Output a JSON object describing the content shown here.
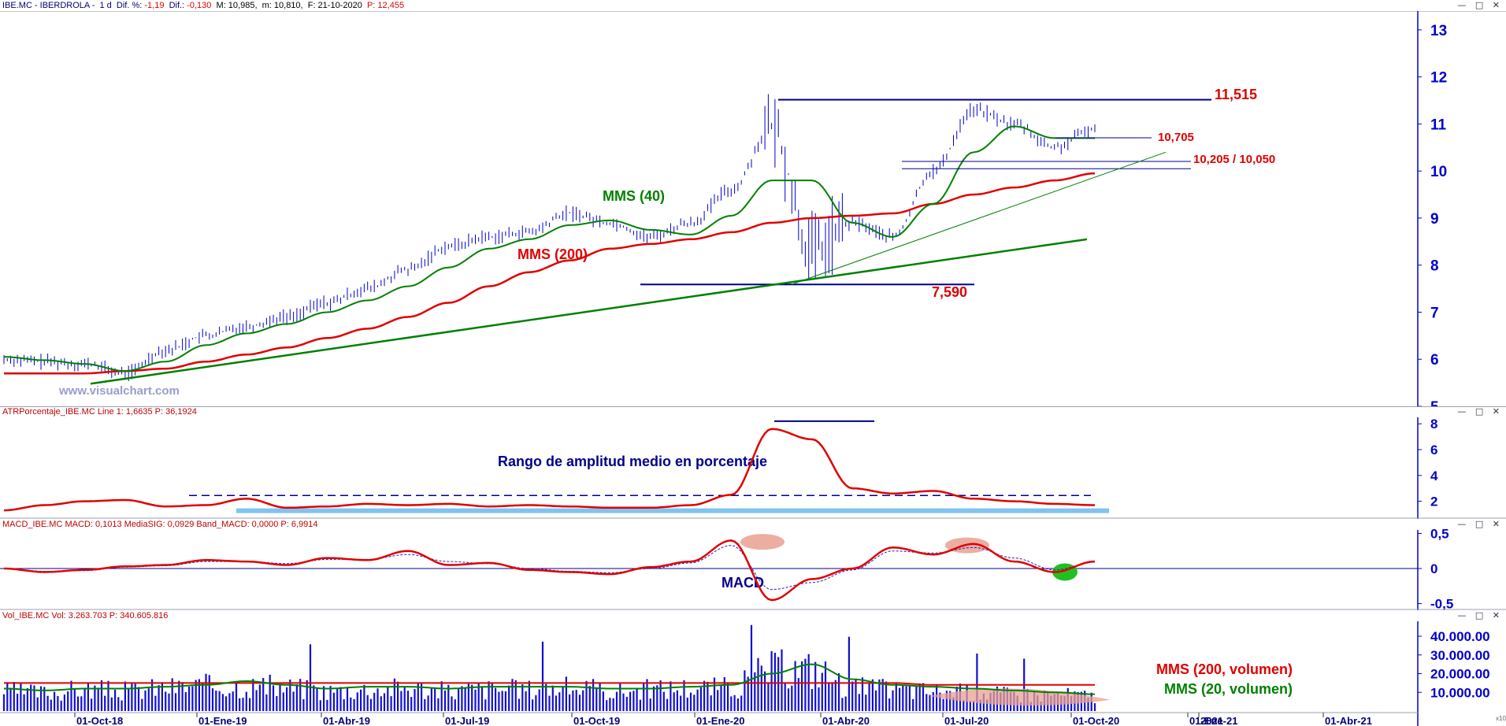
{
  "price_panel": {
    "header": {
      "symbol": "IBE.MC - IBERDROLA -",
      "interval": "1 d",
      "dif_pct_label": "Dif. %:",
      "dif_pct": "-1,19",
      "dif_label": "Dif.:",
      "dif": "-0,130",
      "max": "M: 10,985",
      "min": "m: 10,810",
      "date": "F: 21-10-2020",
      "p_label": "P:",
      "p": "12,455"
    },
    "watermark": "www.visualchart.com",
    "annotations": {
      "resistance": "11,515",
      "level1": "10,705",
      "level2": "10,205 / 10,050",
      "support": "7,590",
      "mms40": "MMS (40)",
      "mms200": "MMS (200)"
    },
    "y_ticks": [
      "13",
      "12",
      "11",
      "10",
      "9",
      "8",
      "7",
      "6",
      "5"
    ]
  },
  "atr_panel": {
    "header": "ATRPorcentaje_IBE.MC  Line 1: 1,6635  P: 36,1924",
    "title": "Rango de amplitud medio en porcentaje",
    "y_ticks": [
      "8",
      "6",
      "4",
      "2"
    ]
  },
  "macd_panel": {
    "header": "MACD_IBE.MC  MACD: 0,1013  MediaSIG: 0,0929  Band_MACD: 0,0000  P: 6,9914",
    "label": "MACD",
    "y_ticks": [
      "0,5",
      "0",
      "-0,5"
    ]
  },
  "volume_panel": {
    "header": "Vol_IBE.MC  Vol: 3.263.703  P: 340.605.816",
    "legend_200": "MMS (200, volumen)",
    "legend_20": "MMS (20, volumen)",
    "y_ticks": [
      "40.000.00",
      "30.000.00",
      "20.000.00",
      "10.000.00"
    ],
    "scale_note": "x10"
  },
  "x_axis": {
    "ticks": [
      "01-Oct-18",
      "01-Ene-19",
      "01-Abr-19",
      "01-Jul-19",
      "01-Oct-19",
      "01-Ene-20",
      "01-Abr-20",
      "01-Jul-20",
      "01-Oct-20",
      "2021",
      "01-Ene-21",
      "01-Abr-21"
    ]
  },
  "colors": {
    "price": "#0000cc",
    "mms40": "#008000",
    "mms200": "#e00000",
    "lines": "#00008b",
    "annotation_red": "#e00000",
    "atr": "#e00000",
    "axis": "#0000cc"
  },
  "chart_data": [
    {
      "type": "line",
      "name": "price",
      "x": [
        "2018-07",
        "2018-08",
        "2018-09",
        "2018-10",
        "2018-11",
        "2018-12",
        "2019-01",
        "2019-02",
        "2019-03",
        "2019-04",
        "2019-05",
        "2019-06",
        "2019-07",
        "2019-08",
        "2019-09",
        "2019-10",
        "2019-11",
        "2019-12",
        "2020-01",
        "2020-02",
        "2020-03",
        "2020-04",
        "2020-05",
        "2020-06",
        "2020-07",
        "2020-08",
        "2020-09",
        "2020-10"
      ],
      "series": [
        {
          "name": "Precio",
          "values": [
            6.0,
            5.95,
            5.9,
            5.7,
            6.2,
            6.5,
            6.7,
            6.9,
            7.2,
            7.5,
            7.9,
            8.4,
            8.6,
            8.7,
            9.1,
            8.9,
            8.6,
            8.9,
            9.6,
            10.9,
            8.3,
            8.9,
            8.6,
            10.0,
            11.3,
            11.0,
            10.5,
            10.9
          ]
        },
        {
          "name": "MMS (40)",
          "values": [
            6.05,
            5.98,
            5.9,
            5.75,
            5.95,
            6.3,
            6.55,
            6.75,
            7.0,
            7.25,
            7.55,
            7.95,
            8.35,
            8.55,
            8.85,
            8.95,
            8.75,
            8.65,
            9.05,
            9.8,
            9.8,
            8.9,
            8.6,
            9.3,
            10.4,
            10.95,
            10.7,
            10.7
          ]
        },
        {
          "name": "MMS (200)",
          "values": [
            5.7,
            5.7,
            5.7,
            5.75,
            5.8,
            5.95,
            6.1,
            6.25,
            6.45,
            6.65,
            6.9,
            7.2,
            7.55,
            7.85,
            8.1,
            8.35,
            8.45,
            8.55,
            8.7,
            8.9,
            9.0,
            9.05,
            9.1,
            9.3,
            9.5,
            9.65,
            9.8,
            9.95
          ]
        }
      ],
      "ylim": [
        5,
        13.4
      ],
      "levels": {
        "resistance": 11.515,
        "support": 7.59,
        "level1": 10.705,
        "level2a": 10.205,
        "level2b": 10.05
      }
    },
    {
      "type": "line",
      "name": "atr",
      "series": [
        {
          "name": "ATR %",
          "values": [
            1.3,
            1.7,
            2.0,
            2.1,
            1.6,
            1.7,
            2.2,
            1.5,
            1.6,
            1.8,
            1.7,
            1.8,
            1.6,
            1.7,
            1.6,
            1.5,
            1.5,
            1.7,
            2.5,
            7.6,
            6.8,
            3.0,
            2.6,
            2.8,
            2.2,
            2.0,
            1.8,
            1.7
          ]
        }
      ],
      "ylim": [
        1,
        8.5
      ]
    },
    {
      "type": "line",
      "name": "macd",
      "series": [
        {
          "name": "MACD",
          "values": [
            0.0,
            -0.05,
            -0.02,
            0.03,
            0.05,
            0.12,
            0.1,
            0.05,
            0.15,
            0.12,
            0.25,
            0.05,
            0.08,
            -0.02,
            -0.05,
            -0.08,
            0.02,
            0.1,
            0.4,
            -0.45,
            -0.15,
            0.0,
            0.3,
            0.2,
            0.35,
            0.1,
            -0.05,
            0.1
          ]
        },
        {
          "name": "MediaSIG",
          "values": [
            0.0,
            -0.04,
            -0.03,
            0.02,
            0.04,
            0.1,
            0.1,
            0.07,
            0.13,
            0.13,
            0.2,
            0.1,
            0.07,
            0.0,
            -0.04,
            -0.06,
            0.0,
            0.08,
            0.33,
            -0.3,
            -0.2,
            -0.02,
            0.25,
            0.22,
            0.3,
            0.15,
            -0.02,
            0.09
          ]
        }
      ],
      "ylim": [
        -0.55,
        0.55
      ]
    },
    {
      "type": "bar",
      "name": "volume",
      "series": [
        {
          "name": "Vol",
          "values": [
            12,
            11,
            13,
            12,
            14,
            15,
            15,
            14,
            12,
            13,
            14,
            12,
            13,
            13,
            14,
            12,
            13,
            14,
            14,
            25,
            25,
            14,
            13,
            12,
            11,
            10,
            10,
            9
          ]
        },
        {
          "name": "MMS (20, volumen)",
          "values": [
            12,
            11,
            12,
            12,
            13,
            14,
            16,
            14,
            12,
            13,
            13,
            12,
            13,
            13,
            13,
            12,
            12,
            13,
            14,
            20,
            25,
            17,
            14,
            13,
            12,
            11,
            10,
            9
          ]
        },
        {
          "name": "MMS (200, volumen)",
          "values": [
            15,
            15,
            15,
            15,
            15,
            15,
            15,
            15,
            15,
            15,
            15,
            15,
            15,
            15,
            15,
            15,
            15,
            15,
            15,
            15,
            15,
            15,
            15,
            14,
            14,
            14,
            14,
            14
          ]
        }
      ],
      "ylim": [
        0,
        48
      ]
    }
  ]
}
